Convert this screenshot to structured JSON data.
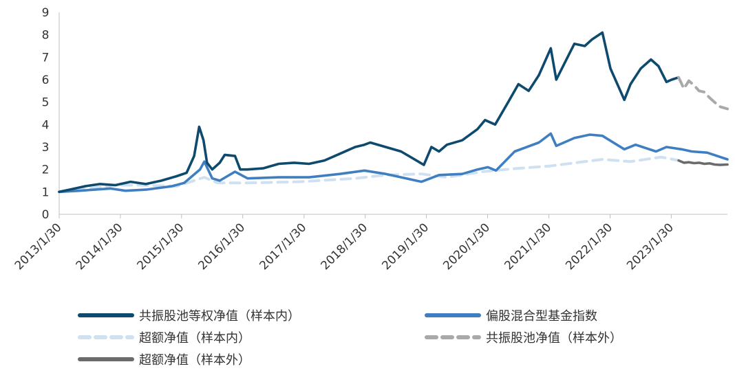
{
  "chart_data": {
    "type": "line",
    "title": "",
    "xlabel": "",
    "ylabel": "",
    "ylim": [
      0,
      9
    ],
    "yticks": [
      0,
      1,
      2,
      3,
      4,
      5,
      6,
      7,
      8,
      9
    ],
    "xlim": [
      "2013-01-30",
      "2023-12-31"
    ],
    "xticks": [
      "2013/1/30",
      "2014/1/30",
      "2015/1/30",
      "2016/1/30",
      "2017/1/30",
      "2018/1/30",
      "2019/1/30",
      "2020/1/30",
      "2021/1/30",
      "2022/1/30",
      "2023/1/30"
    ],
    "grid": false,
    "legend_position": "bottom",
    "series": [
      {
        "name": "共振股池等权净值（样本内）",
        "color": "#0d4a6e",
        "style": "solid",
        "x": [
          "2013-01-30",
          "2013-04-01",
          "2013-07-01",
          "2013-10-01",
          "2014-01-01",
          "2014-04-01",
          "2014-07-01",
          "2014-10-01",
          "2015-01-01",
          "2015-03-01",
          "2015-04-15",
          "2015-05-15",
          "2015-06-10",
          "2015-07-01",
          "2015-08-01",
          "2015-09-15",
          "2015-10-15",
          "2015-12-15",
          "2016-01-15",
          "2016-02-28",
          "2016-06-01",
          "2016-09-01",
          "2016-12-01",
          "2017-03-01",
          "2017-06-01",
          "2017-09-01",
          "2017-12-01",
          "2018-01-25",
          "2018-03-01",
          "2018-06-01",
          "2018-09-01",
          "2018-12-01",
          "2019-01-15",
          "2019-03-01",
          "2019-04-15",
          "2019-06-01",
          "2019-09-01",
          "2019-12-01",
          "2020-01-15",
          "2020-03-15",
          "2020-06-01",
          "2020-08-01",
          "2020-10-01",
          "2020-12-01",
          "2021-02-10",
          "2021-03-15",
          "2021-05-01",
          "2021-07-01",
          "2021-09-01",
          "2021-10-15",
          "2021-12-15",
          "2022-02-01",
          "2022-04-25",
          "2022-06-01",
          "2022-08-01",
          "2022-10-01",
          "2022-11-15",
          "2023-01-01",
          "2023-02-01",
          "2023-03-15"
        ],
        "y": [
          1.0,
          1.1,
          1.25,
          1.35,
          1.3,
          1.45,
          1.35,
          1.5,
          1.7,
          1.85,
          2.6,
          3.9,
          3.3,
          2.3,
          2.0,
          2.3,
          2.65,
          2.6,
          2.0,
          2.0,
          2.05,
          2.25,
          2.3,
          2.25,
          2.4,
          2.7,
          3.0,
          3.1,
          3.2,
          3.0,
          2.8,
          2.4,
          2.2,
          3.0,
          2.8,
          3.1,
          3.3,
          3.8,
          4.2,
          4.0,
          5.0,
          5.8,
          5.5,
          6.2,
          7.4,
          6.0,
          6.7,
          7.6,
          7.5,
          7.8,
          8.1,
          6.5,
          5.1,
          5.8,
          6.5,
          6.9,
          6.6,
          5.9,
          6.0,
          6.1
        ]
      },
      {
        "name": "偏股混合型基金指数",
        "color": "#3f7fc1",
        "style": "solid",
        "x": [
          "2013-01-30",
          "2013-06-01",
          "2013-12-01",
          "2014-03-01",
          "2014-07-01",
          "2014-12-01",
          "2015-02-15",
          "2015-05-20",
          "2015-06-15",
          "2015-08-01",
          "2015-09-15",
          "2015-12-15",
          "2016-02-28",
          "2016-09-01",
          "2017-03-01",
          "2017-09-01",
          "2018-01-25",
          "2018-06-01",
          "2018-09-01",
          "2019-01-01",
          "2019-04-15",
          "2019-09-01",
          "2019-12-01",
          "2020-02-01",
          "2020-03-20",
          "2020-07-10",
          "2020-12-01",
          "2021-02-10",
          "2021-03-15",
          "2021-07-01",
          "2021-10-01",
          "2021-12-15",
          "2022-04-25",
          "2022-07-01",
          "2022-10-31",
          "2023-01-01",
          "2023-04-01",
          "2023-06-01",
          "2023-09-01",
          "2023-12-31"
        ],
        "y": [
          1.0,
          1.05,
          1.15,
          1.05,
          1.1,
          1.25,
          1.4,
          2.0,
          2.35,
          1.6,
          1.5,
          1.9,
          1.6,
          1.65,
          1.65,
          1.8,
          1.95,
          1.8,
          1.65,
          1.45,
          1.75,
          1.8,
          2.0,
          2.1,
          1.95,
          2.8,
          3.2,
          3.6,
          3.05,
          3.4,
          3.55,
          3.5,
          2.9,
          3.1,
          2.8,
          3.0,
          2.9,
          2.8,
          2.75,
          2.45
        ]
      },
      {
        "name": "超额净值（样本内）",
        "color": "#cfe0f1",
        "style": "dash",
        "x": [
          "2013-01-30",
          "2013-06-01",
          "2014-01-01",
          "2014-06-01",
          "2015-01-01",
          "2015-06-15",
          "2015-09-01",
          "2016-03-01",
          "2017-01-01",
          "2017-12-01",
          "2018-06-01",
          "2019-01-01",
          "2019-06-01",
          "2020-01-01",
          "2020-08-01",
          "2021-02-01",
          "2021-12-15",
          "2022-06-01",
          "2022-12-01",
          "2023-03-15"
        ],
        "y": [
          1.0,
          1.1,
          1.3,
          1.3,
          1.25,
          1.65,
          1.4,
          1.4,
          1.45,
          1.6,
          1.75,
          1.8,
          1.65,
          1.9,
          2.05,
          2.15,
          2.45,
          2.35,
          2.55,
          2.4
        ]
      },
      {
        "name": "共振股池净值（样本外）",
        "color": "#a9a9a9",
        "style": "dash",
        "x": [
          "2023-03-15",
          "2023-04-15",
          "2023-05-15",
          "2023-06-15",
          "2023-07-15",
          "2023-08-15",
          "2023-09-15",
          "2023-10-15",
          "2023-11-15",
          "2023-12-31"
        ],
        "y": [
          6.1,
          5.6,
          5.95,
          5.75,
          5.5,
          5.45,
          5.2,
          5.0,
          4.8,
          4.7
        ]
      },
      {
        "name": "超额净值（样本外）",
        "color": "#6b6b6b",
        "style": "solid",
        "x": [
          "2023-03-15",
          "2023-04-15",
          "2023-05-15",
          "2023-06-15",
          "2023-07-15",
          "2023-08-15",
          "2023-09-15",
          "2023-10-15",
          "2023-11-15",
          "2023-12-31"
        ],
        "y": [
          2.4,
          2.3,
          2.32,
          2.28,
          2.3,
          2.25,
          2.27,
          2.22,
          2.2,
          2.22
        ]
      }
    ]
  }
}
